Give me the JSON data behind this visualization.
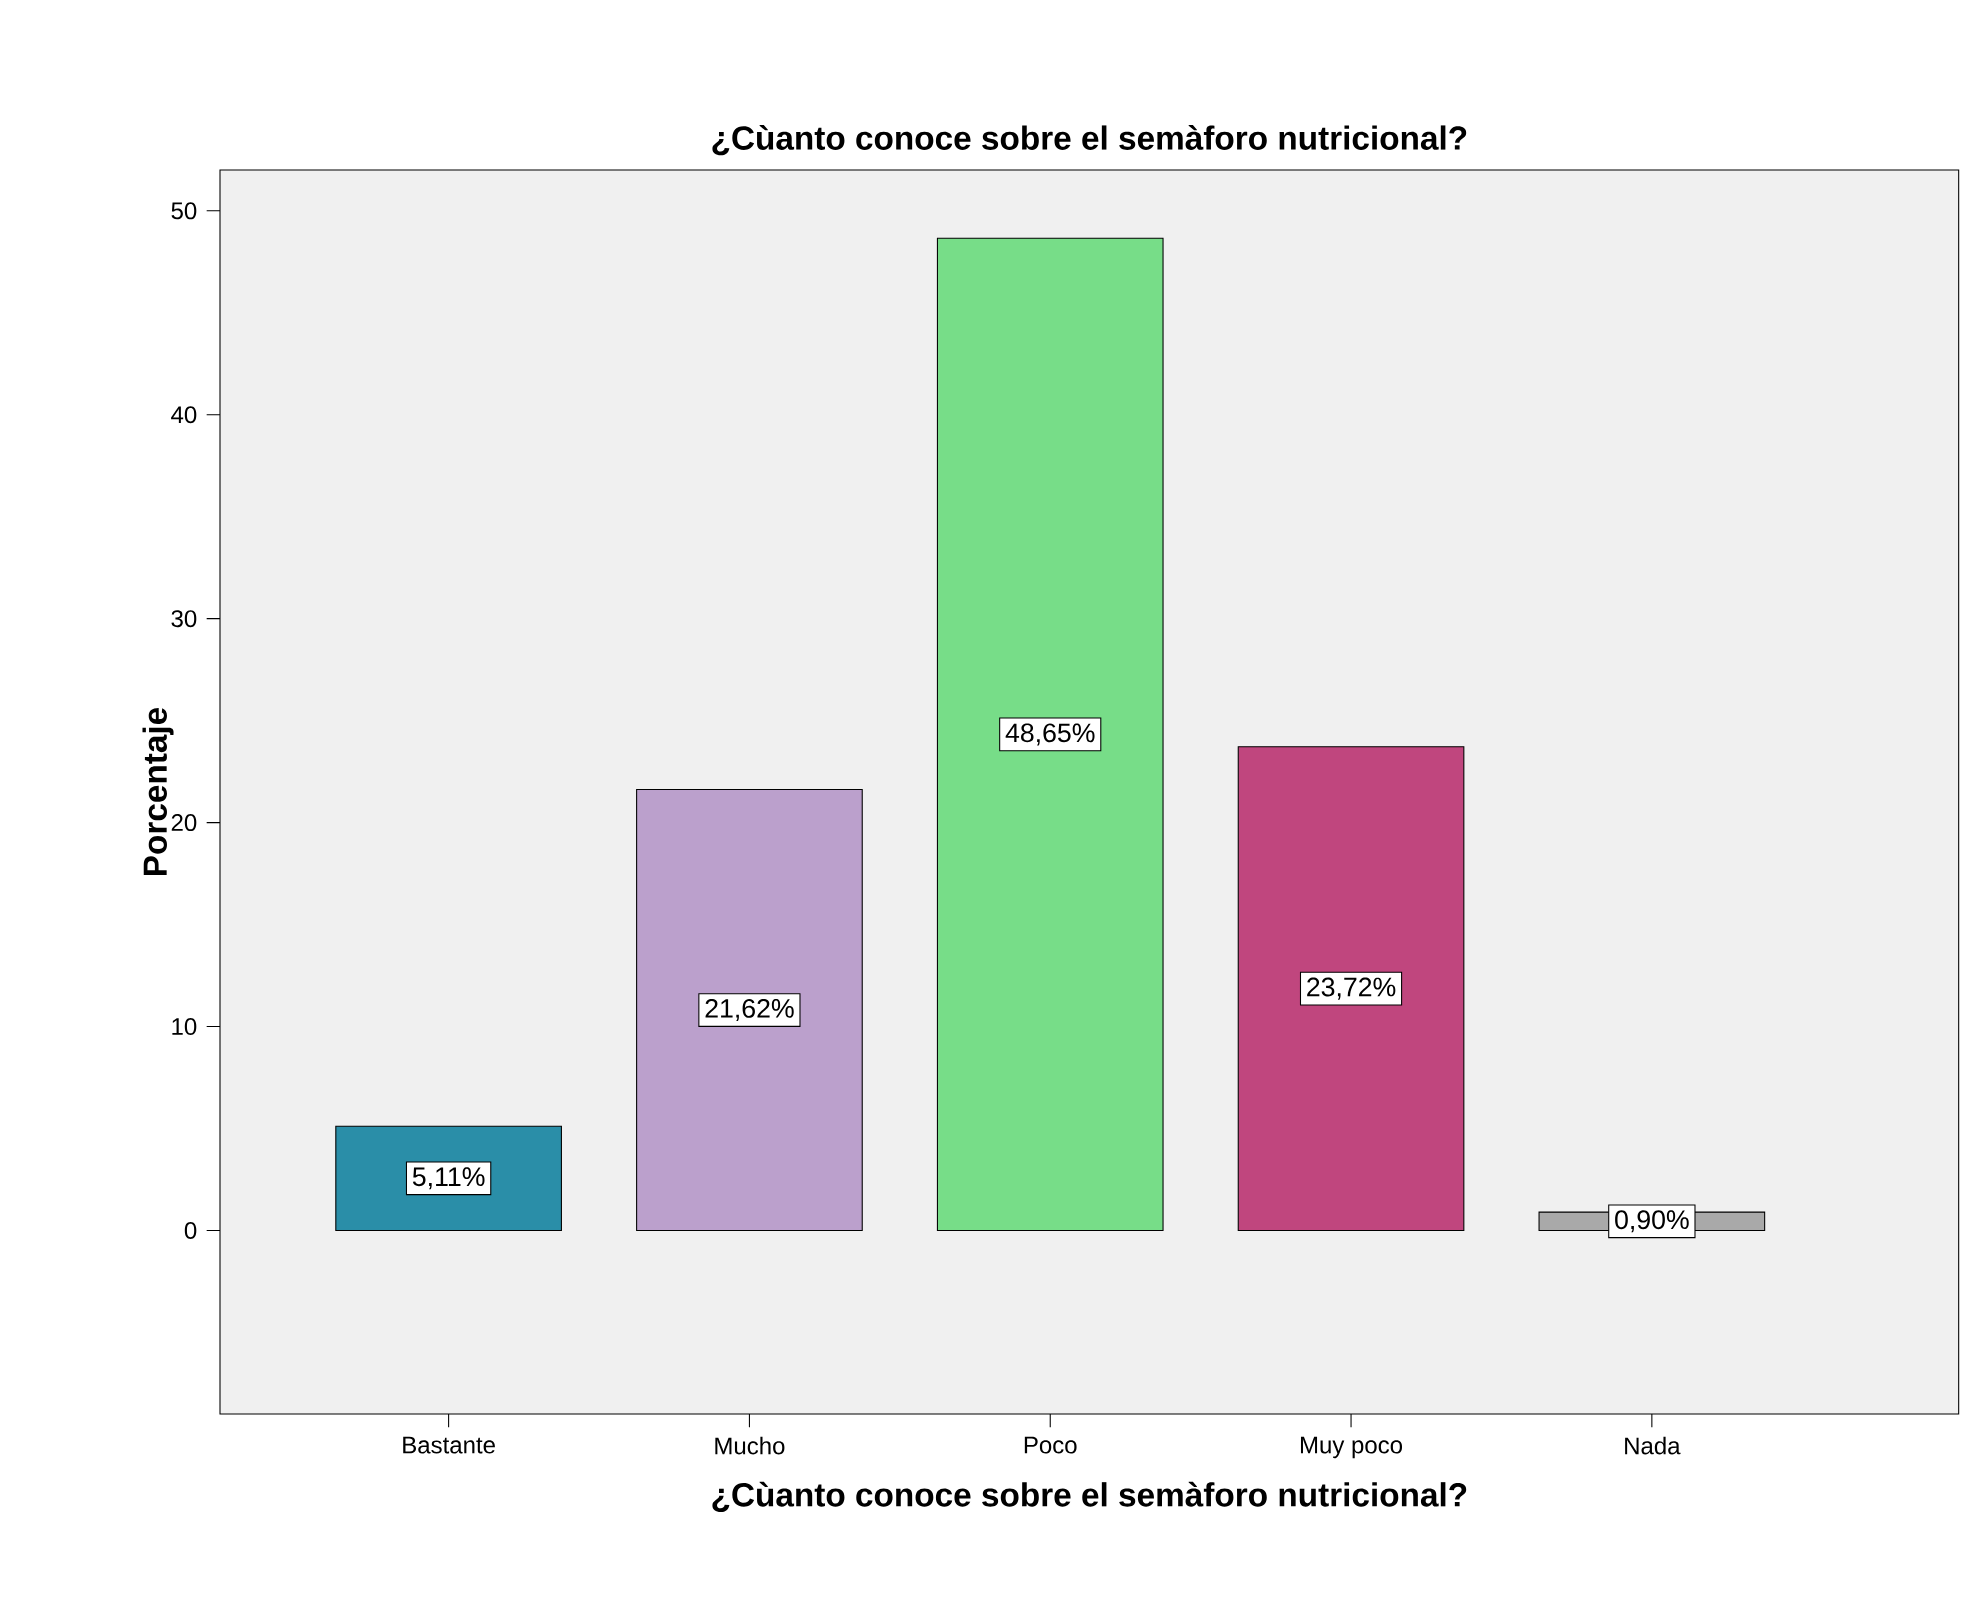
{
  "chart_data": {
    "type": "bar",
    "title": "¿Cùanto conoce sobre el semàforo nutricional?",
    "xlabel": "¿Cùanto conoce sobre el semàforo nutricional?",
    "ylabel": "Porcentaje",
    "categories": [
      "Bastante",
      "Mucho",
      "Poco",
      "Muy poco",
      "Nada"
    ],
    "values": [
      5.11,
      21.62,
      48.65,
      23.72,
      0.9
    ],
    "value_labels": [
      "5,11%",
      "21,62%",
      "48,65%",
      "23,72%",
      "0,90%"
    ],
    "colors": [
      "#2a8ea8",
      "#bba0cc",
      "#77dd88",
      "#c0467e",
      "#a9a9a9"
    ],
    "ylim": [
      -9,
      52
    ],
    "yticks": [
      0,
      10,
      20,
      30,
      40,
      50
    ]
  }
}
